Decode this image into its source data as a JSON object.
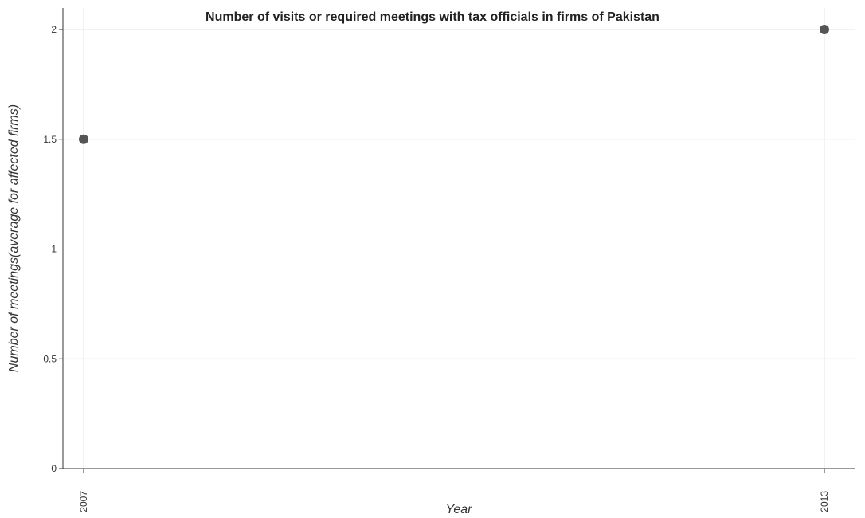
{
  "chart_data": {
    "type": "scatter",
    "title": "Number of visits or required meetings with tax officials in firms of Pakistan",
    "xlabel": "Year",
    "ylabel": "Number of meetings(average for affected firms)",
    "categories": [
      "2007",
      "2013"
    ],
    "series": [
      {
        "name": "Pakistan",
        "values": [
          1.5,
          2.0
        ]
      }
    ],
    "ylim": [
      0,
      2
    ],
    "yticks": [
      0,
      0.5,
      1,
      1.5,
      2
    ],
    "ytick_labels": [
      "0",
      "0.5",
      "1",
      "1.5",
      "2"
    ],
    "grid": true,
    "legend": "none",
    "colors": {
      "marker": "#555555",
      "grid": "#e6e6e6",
      "axis": "#333333"
    }
  }
}
